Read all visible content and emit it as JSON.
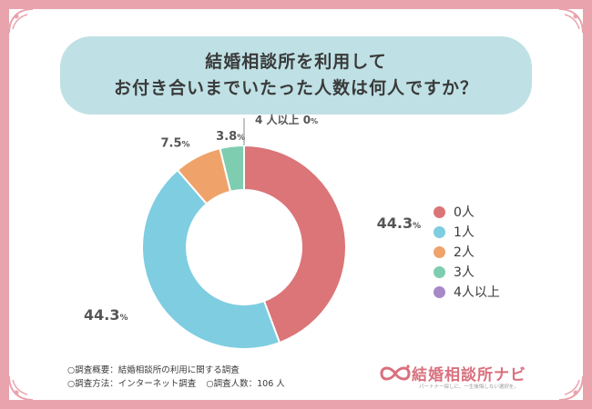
{
  "title": {
    "line1": "結婚相談所を利用して",
    "line2": "お付き合いまでいたった人数は何人ですか？"
  },
  "chart_data": {
    "type": "pie",
    "donut": true,
    "categories": [
      "0人",
      "1人",
      "2人",
      "3人",
      "4人以上"
    ],
    "values": [
      44.3,
      44.3,
      7.5,
      3.8,
      0
    ],
    "value_labels": [
      "44.3",
      "44.3",
      "7.5",
      "3.8",
      "4 人以上 0"
    ],
    "unit": "%",
    "colors": [
      "#db7578",
      "#7ecde0",
      "#efa36a",
      "#7fcdb0",
      "#a789c7"
    ],
    "legend_position": "right"
  },
  "notes": {
    "overview": "○調査概要：結婚相談所の利用に関する調査",
    "method": "○調査方法：インターネット調査",
    "respondents": "○調査人数：106 人"
  },
  "logo": {
    "name": "結婚相談所ナビ",
    "tagline": "パートナー探しに、一生後悔しない選択を。",
    "icon": "infinity-heart-icon",
    "color": "#d9707d"
  },
  "frame_color": "#e9a3ad",
  "title_bg": "#bfe1e5"
}
